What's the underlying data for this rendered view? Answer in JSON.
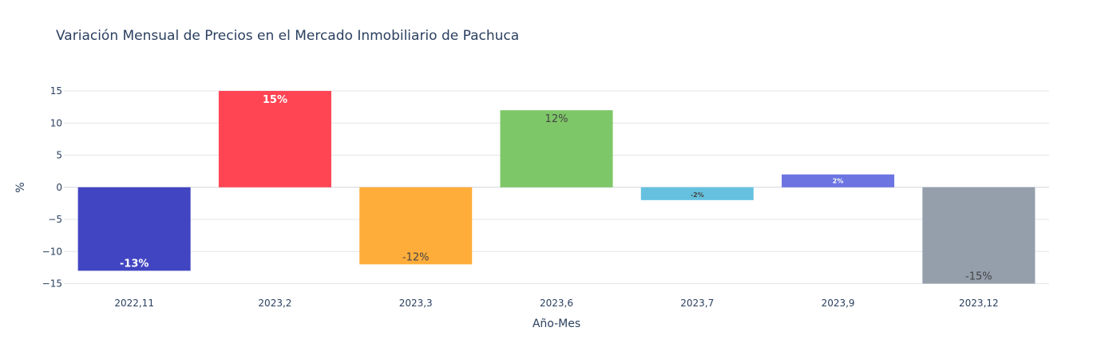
{
  "chart_data": {
    "type": "bar",
    "title": "Variación Mensual de Precios en el Mercado Inmobiliario de Pachuca",
    "xlabel": "Año-Mes",
    "ylabel": "%",
    "ylim": [
      -15,
      15
    ],
    "yticks": [
      15,
      10,
      5,
      0,
      -5,
      -10,
      -15
    ],
    "ytick_labels": [
      "15",
      "10",
      "5",
      "0",
      "−5",
      "−10",
      "−15"
    ],
    "grid": true,
    "categories": [
      "2022,11",
      "2023,2",
      "2023,3",
      "2023,6",
      "2023,7",
      "2023,9",
      "2023,12"
    ],
    "values": [
      -13,
      15,
      -12,
      12,
      -2,
      2,
      -15
    ],
    "data_labels": [
      "-13%",
      "15%",
      "-12%",
      "12%",
      "-2%",
      "2%",
      "-15%"
    ],
    "colors": [
      "#4245c2",
      "#ff4554",
      "#ffad3a",
      "#7ec768",
      "#65c1df",
      "#6b74e1",
      "#949fab"
    ],
    "label_colors": [
      "#ffffff",
      "#ffffff",
      "#444444",
      "#444444",
      "#444444",
      "#ffffff",
      "#444444"
    ]
  }
}
